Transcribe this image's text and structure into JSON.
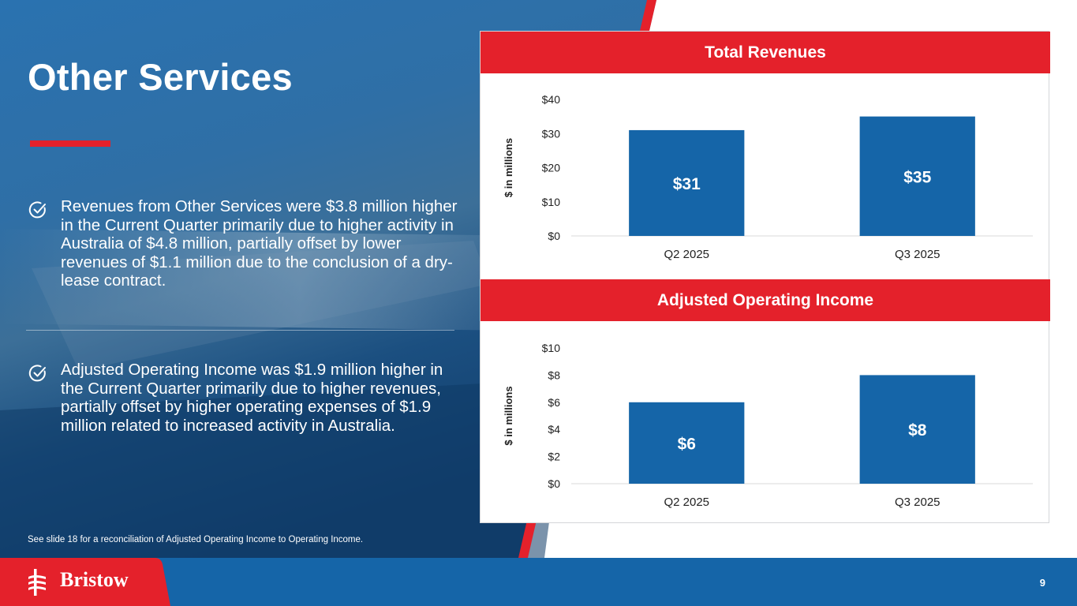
{
  "slide": {
    "title": "Other Services",
    "bullets": [
      "Revenues from Other Services were $3.8 million higher in the Current Quarter primarily due to higher activity in Australia of $4.8 million, partially offset by lower revenues of $1.1 million due to the conclusion of a dry-lease contract.",
      "Adjusted Operating Income was $1.9 million higher in the Current Quarter primarily due to higher revenues, partially offset by higher operating expenses of $1.9 million related to increased activity in Australia."
    ],
    "footnote": "See slide 18 for a reconciliation of Adjusted Operating Income to Operating Income.",
    "page_number": "9",
    "logo": "Bristow",
    "colors": {
      "accent_red": "#e4212b",
      "brand_blue": "#1565a8",
      "bar_blue": "#1565a8"
    },
    "icons": [
      "check-circle-icon",
      "bristow-logo-icon"
    ]
  },
  "chart_data": [
    {
      "type": "bar",
      "title": "Total Revenues",
      "categories": [
        "Q2 2025",
        "Q3 2025"
      ],
      "values": [
        31,
        35
      ],
      "data_labels": [
        "$31",
        "$35"
      ],
      "ylabel": "$ in millions",
      "ylim": [
        0,
        40
      ],
      "yticks": [
        0,
        10,
        20,
        30,
        40
      ],
      "ytick_labels": [
        "$0",
        "$10",
        "$20",
        "$30",
        "$40"
      ],
      "grid": false,
      "legend": "none"
    },
    {
      "type": "bar",
      "title": "Adjusted Operating Income",
      "categories": [
        "Q2 2025",
        "Q3 2025"
      ],
      "values": [
        6,
        8
      ],
      "data_labels": [
        "$6",
        "$8"
      ],
      "ylabel": "$ in millions",
      "ylim": [
        0,
        10
      ],
      "yticks": [
        0,
        2,
        4,
        6,
        8,
        10
      ],
      "ytick_labels": [
        "$0",
        "$2",
        "$4",
        "$6",
        "$8",
        "$10"
      ],
      "grid": false,
      "legend": "none"
    }
  ]
}
